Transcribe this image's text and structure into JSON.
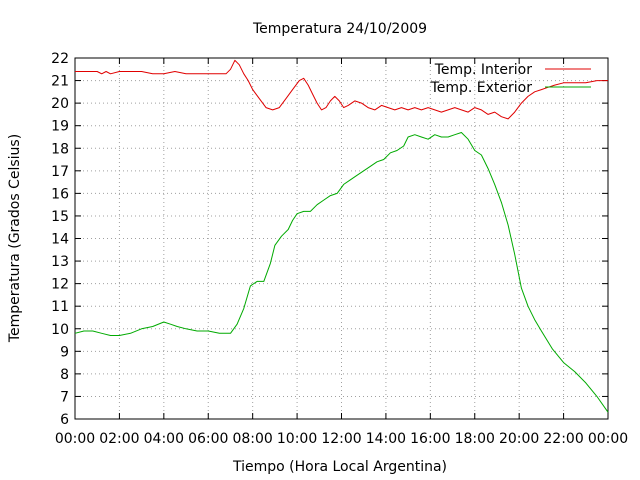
{
  "chart_data": {
    "type": "line",
    "title": "Temperatura 24/10/2009",
    "xlabel": "Tiempo (Hora Local Argentina)",
    "ylabel": "Temperatura (Grados Celsius)",
    "x_unit": "hours",
    "xlim": [
      0,
      24
    ],
    "ylim": [
      6,
      22
    ],
    "x_ticks": [
      0,
      2,
      4,
      6,
      8,
      10,
      12,
      14,
      16,
      18,
      20,
      22,
      24
    ],
    "x_tick_labels": [
      "00:00",
      "02:00",
      "04:00",
      "06:00",
      "08:00",
      "10:00",
      "12:00",
      "14:00",
      "16:00",
      "18:00",
      "20:00",
      "22:00",
      "00:00"
    ],
    "y_ticks": [
      6,
      7,
      8,
      9,
      10,
      11,
      12,
      13,
      14,
      15,
      16,
      17,
      18,
      19,
      20,
      21,
      22
    ],
    "grid": true,
    "legend_position": "top-right",
    "series": [
      {
        "name": "Temp. Interior",
        "color": "#e00000",
        "x": [
          0,
          1,
          1.2,
          1.4,
          1.6,
          2,
          2.5,
          3,
          3.5,
          4,
          4.5,
          5,
          5.5,
          6,
          6.5,
          6.8,
          7.0,
          7.2,
          7.4,
          7.6,
          7.8,
          8.0,
          8.3,
          8.6,
          8.9,
          9.2,
          9.5,
          9.8,
          10.1,
          10.3,
          10.5,
          10.7,
          10.9,
          11.1,
          11.3,
          11.5,
          11.7,
          11.9,
          12.1,
          12.3,
          12.6,
          12.9,
          13.2,
          13.5,
          13.8,
          14.1,
          14.4,
          14.7,
          15.0,
          15.3,
          15.6,
          15.9,
          16.2,
          16.5,
          16.8,
          17.1,
          17.4,
          17.7,
          18.0,
          18.3,
          18.6,
          18.9,
          19.2,
          19.5,
          19.8,
          20.1,
          20.4,
          20.7,
          21.0,
          21.3,
          21.6,
          22.0,
          22.5,
          23.0,
          23.5,
          24.0
        ],
        "y": [
          21.4,
          21.4,
          21.3,
          21.4,
          21.3,
          21.4,
          21.4,
          21.4,
          21.3,
          21.3,
          21.4,
          21.3,
          21.3,
          21.3,
          21.3,
          21.3,
          21.5,
          21.9,
          21.7,
          21.3,
          21.0,
          20.6,
          20.2,
          19.8,
          19.7,
          19.8,
          20.2,
          20.6,
          21.0,
          21.1,
          20.8,
          20.4,
          20.0,
          19.7,
          19.8,
          20.1,
          20.3,
          20.1,
          19.8,
          19.9,
          20.1,
          20.0,
          19.8,
          19.7,
          19.9,
          19.8,
          19.7,
          19.8,
          19.7,
          19.8,
          19.7,
          19.8,
          19.7,
          19.6,
          19.7,
          19.8,
          19.7,
          19.6,
          19.8,
          19.7,
          19.5,
          19.6,
          19.4,
          19.3,
          19.6,
          20.0,
          20.3,
          20.5,
          20.6,
          20.7,
          20.8,
          20.9,
          20.9,
          20.9,
          21.0,
          21.0
        ]
      },
      {
        "name": "Temp. Exterior",
        "color": "#00aa00",
        "x": [
          0,
          0.4,
          0.8,
          1.2,
          1.6,
          2.0,
          2.5,
          3.0,
          3.5,
          4.0,
          4.3,
          4.6,
          5.0,
          5.5,
          6.0,
          6.5,
          7.0,
          7.3,
          7.6,
          7.9,
          8.2,
          8.5,
          8.8,
          9.0,
          9.3,
          9.6,
          9.8,
          10.0,
          10.3,
          10.6,
          10.9,
          11.2,
          11.5,
          11.8,
          12.1,
          12.4,
          12.7,
          13.0,
          13.3,
          13.6,
          13.9,
          14.2,
          14.5,
          14.8,
          15.0,
          15.3,
          15.6,
          15.9,
          16.2,
          16.5,
          16.8,
          17.1,
          17.4,
          17.7,
          18.0,
          18.3,
          18.6,
          18.9,
          19.2,
          19.5,
          19.8,
          20.1,
          20.4,
          20.7,
          21.0,
          21.5,
          22.0,
          22.5,
          23.0,
          23.5,
          24.0
        ],
        "y": [
          9.8,
          9.9,
          9.9,
          9.8,
          9.7,
          9.7,
          9.8,
          10.0,
          10.1,
          10.3,
          10.2,
          10.1,
          10.0,
          9.9,
          9.9,
          9.8,
          9.8,
          10.2,
          10.9,
          11.9,
          12.1,
          12.1,
          12.9,
          13.7,
          14.1,
          14.4,
          14.8,
          15.1,
          15.2,
          15.2,
          15.5,
          15.7,
          15.9,
          16.0,
          16.4,
          16.6,
          16.8,
          17.0,
          17.2,
          17.4,
          17.5,
          17.8,
          17.9,
          18.1,
          18.5,
          18.6,
          18.5,
          18.4,
          18.6,
          18.5,
          18.5,
          18.6,
          18.7,
          18.4,
          17.9,
          17.7,
          17.1,
          16.4,
          15.6,
          14.6,
          13.3,
          11.8,
          11.0,
          10.4,
          9.9,
          9.1,
          8.5,
          8.1,
          7.6,
          7.0,
          6.3
        ]
      }
    ]
  }
}
